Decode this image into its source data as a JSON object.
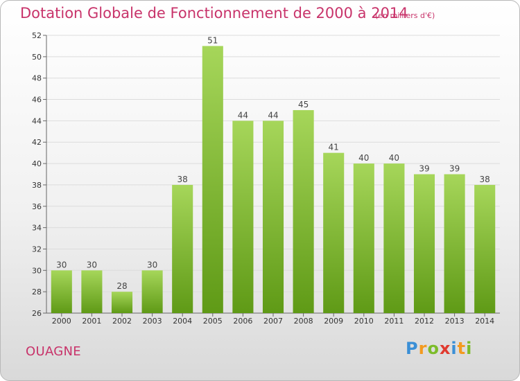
{
  "header": {
    "title": "Dotation Globale de Fonctionnement de 2000 à 2014",
    "subtitle": "(en milliers d'€)"
  },
  "footer": {
    "city": "OUAGNE",
    "logo": {
      "letters": [
        "P",
        "r",
        "o",
        "x",
        "i",
        "t",
        "i"
      ],
      "colors": [
        "#3a8fd6",
        "#f39a1f",
        "#7cbc2a",
        "#e03a2f",
        "#3a8fd6",
        "#f39a1f",
        "#7cbc2a"
      ]
    }
  },
  "chart_data": {
    "type": "bar",
    "title": "Dotation Globale de Fonctionnement de 2000 à 2014",
    "subtitle": "(en milliers d'€)",
    "categories": [
      "2000",
      "2001",
      "2002",
      "2003",
      "2004",
      "2005",
      "2006",
      "2007",
      "2008",
      "2009",
      "2010",
      "2011",
      "2012",
      "2013",
      "2014"
    ],
    "values": [
      30,
      30,
      28,
      30,
      38,
      51,
      44,
      44,
      45,
      41,
      40,
      40,
      39,
      39,
      38
    ],
    "ylim": [
      26,
      52
    ],
    "yticks": [
      26,
      28,
      30,
      32,
      34,
      36,
      38,
      40,
      42,
      44,
      46,
      48,
      50,
      52
    ],
    "grid": true,
    "bar_color_top": "#a6d65a",
    "bar_color_bottom": "#5f9a16"
  }
}
